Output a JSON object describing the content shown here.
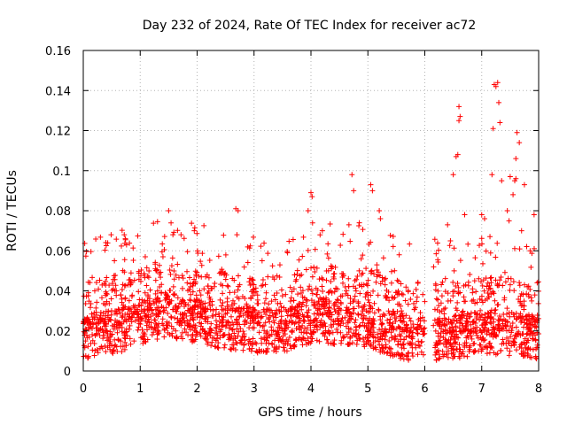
{
  "chart_data": {
    "type": "scatter",
    "title": "Day 232 of 2024, Rate Of TEC Index for receiver ac72",
    "xlabel": "GPS time / hours",
    "ylabel": "ROTI / TECUs",
    "xlim": [
      0,
      8
    ],
    "ylim": [
      0,
      0.16
    ],
    "xticks": [
      "0",
      "1",
      "2",
      "3",
      "4",
      "5",
      "6",
      "7",
      "8"
    ],
    "yticks": [
      "0",
      "0.02",
      "0.04",
      "0.06",
      "0.08",
      "0.1",
      "0.12",
      "0.14",
      "0.16"
    ],
    "grid": true,
    "marker": "+",
    "color": "#ff0000",
    "gap": [
      6.0,
      6.15
    ],
    "baseline_profile": [
      [
        0.0,
        0.017
      ],
      [
        0.3,
        0.019
      ],
      [
        0.6,
        0.02
      ],
      [
        0.9,
        0.022
      ],
      [
        1.2,
        0.026
      ],
      [
        1.5,
        0.028
      ],
      [
        1.8,
        0.026
      ],
      [
        2.1,
        0.024
      ],
      [
        2.4,
        0.022
      ],
      [
        2.7,
        0.021
      ],
      [
        3.0,
        0.02
      ],
      [
        3.3,
        0.02
      ],
      [
        3.6,
        0.021
      ],
      [
        3.9,
        0.024
      ],
      [
        4.2,
        0.025
      ],
      [
        4.5,
        0.024
      ],
      [
        4.8,
        0.024
      ],
      [
        5.1,
        0.022
      ],
      [
        5.4,
        0.018
      ],
      [
        5.7,
        0.016
      ],
      [
        6.0,
        0.017
      ],
      [
        6.2,
        0.016
      ],
      [
        6.5,
        0.017
      ],
      [
        6.8,
        0.018
      ],
      [
        7.1,
        0.019
      ],
      [
        7.4,
        0.019
      ],
      [
        7.7,
        0.018
      ],
      [
        8.0,
        0.017
      ]
    ],
    "notable_points": [
      [
        0.72,
        0.068
      ],
      [
        0.74,
        0.066
      ],
      [
        0.76,
        0.063
      ],
      [
        1.5,
        0.08
      ],
      [
        1.4,
        0.057
      ],
      [
        1.95,
        0.07
      ],
      [
        2.68,
        0.081
      ],
      [
        2.72,
        0.08
      ],
      [
        2.7,
        0.068
      ],
      [
        3.95,
        0.08
      ],
      [
        4.0,
        0.089
      ],
      [
        4.02,
        0.087
      ],
      [
        4.2,
        0.07
      ],
      [
        4.72,
        0.098
      ],
      [
        4.75,
        0.09
      ],
      [
        4.85,
        0.074
      ],
      [
        5.05,
        0.093
      ],
      [
        5.08,
        0.09
      ],
      [
        5.2,
        0.08
      ],
      [
        5.22,
        0.076
      ],
      [
        5.55,
        0.058
      ],
      [
        6.5,
        0.098
      ],
      [
        6.55,
        0.107
      ],
      [
        6.58,
        0.108
      ],
      [
        6.6,
        0.125
      ],
      [
        6.62,
        0.127
      ],
      [
        6.6,
        0.132
      ],
      [
        6.7,
        0.078
      ],
      [
        6.4,
        0.073
      ],
      [
        6.45,
        0.065
      ],
      [
        7.0,
        0.078
      ],
      [
        7.05,
        0.076
      ],
      [
        7.22,
        0.143
      ],
      [
        7.25,
        0.142
      ],
      [
        7.28,
        0.144
      ],
      [
        7.3,
        0.134
      ],
      [
        7.2,
        0.121
      ],
      [
        7.32,
        0.124
      ],
      [
        7.18,
        0.098
      ],
      [
        7.35,
        0.095
      ],
      [
        7.5,
        0.097
      ],
      [
        7.55,
        0.088
      ],
      [
        7.62,
        0.119
      ],
      [
        7.66,
        0.114
      ],
      [
        7.6,
        0.106
      ],
      [
        7.58,
        0.095
      ],
      [
        7.6,
        0.096
      ],
      [
        7.75,
        0.093
      ],
      [
        7.92,
        0.078
      ],
      [
        7.85,
        0.06
      ],
      [
        7.45,
        0.08
      ],
      [
        7.48,
        0.075
      ],
      [
        7.7,
        0.07
      ]
    ]
  }
}
